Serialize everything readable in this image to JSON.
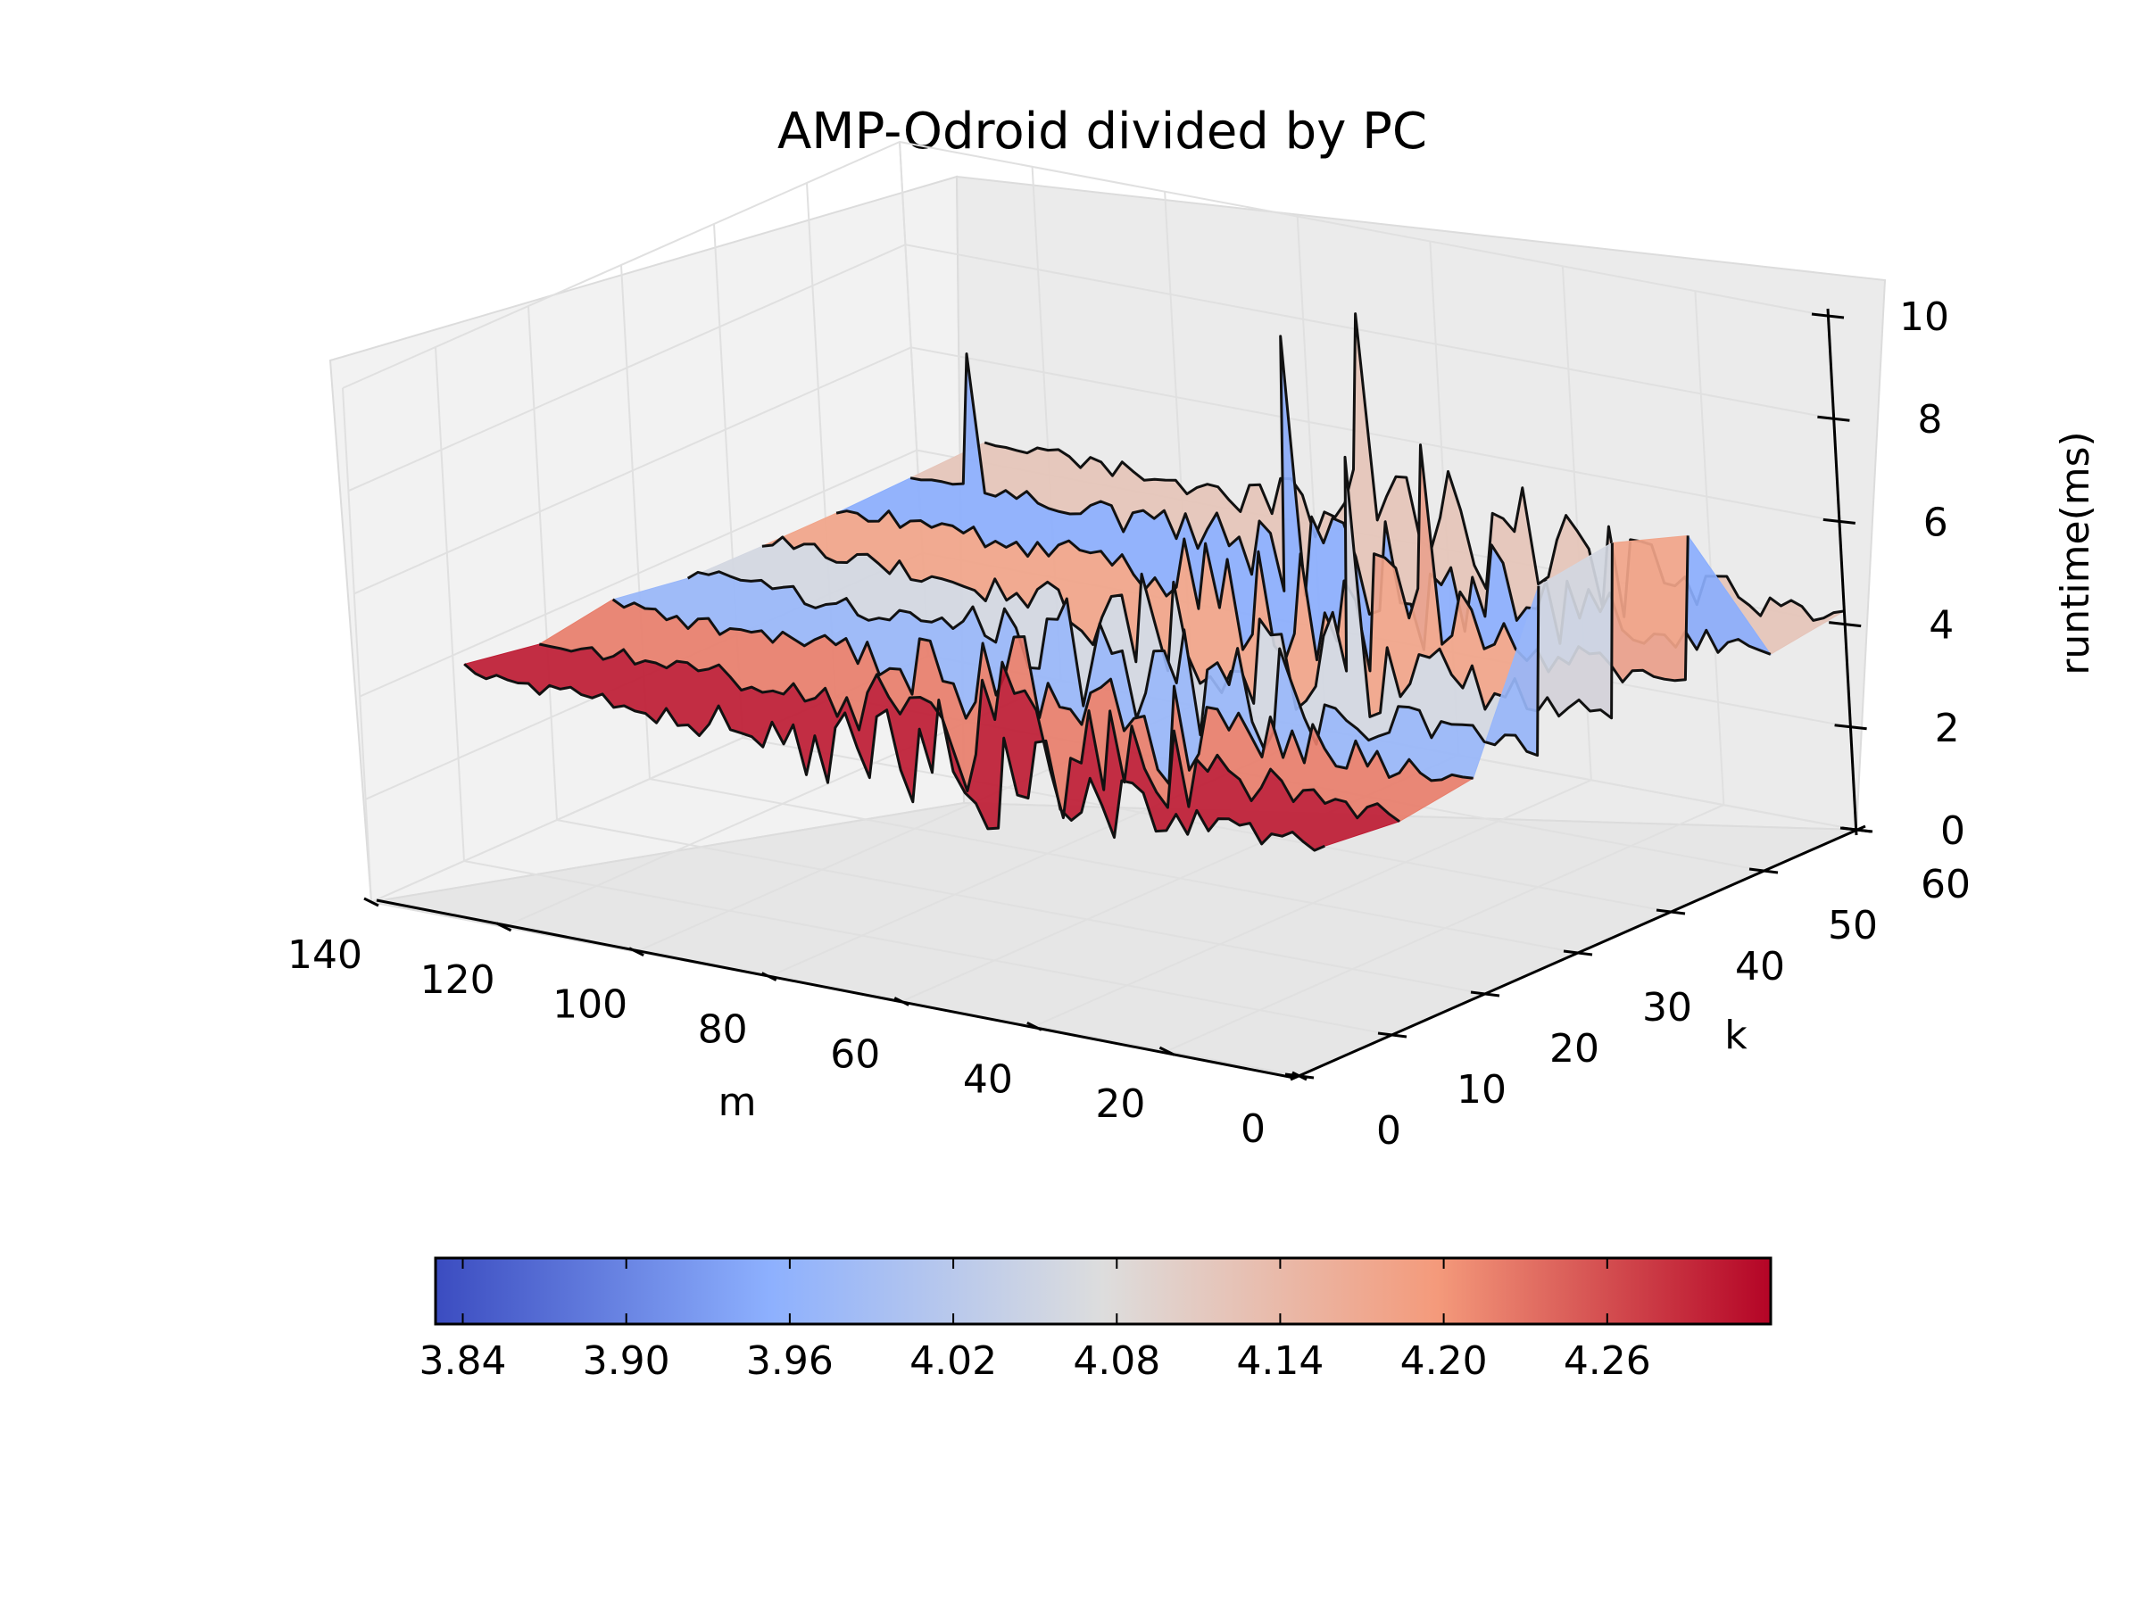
{
  "colors": {
    "background": "#ffffff",
    "pane_left": "#f2f2f2",
    "pane_back": "#ebebeb",
    "pane_floor": "#e6e6e6",
    "gridline": "#e0e0e0",
    "surface_edge": "#111111",
    "cmap_low": "#3b4cc0",
    "cmap_mid": "#dddddd",
    "cmap_high": "#b40426"
  },
  "chart_data": {
    "type": "surface3d",
    "title": "AMP-Odroid divided by PC",
    "xlabel": "m",
    "ylabel": "k",
    "zlabel": "runtime(ms)",
    "x_ticks": [
      "0",
      "20",
      "40",
      "60",
      "80",
      "100",
      "120",
      "140"
    ],
    "y_ticks": [
      "0",
      "10",
      "20",
      "30",
      "40",
      "50",
      "60"
    ],
    "z_ticks": [
      "0",
      "2",
      "4",
      "6",
      "8",
      "10"
    ],
    "xlim": [
      0,
      140
    ],
    "ylim": [
      0,
      60
    ],
    "zlim": [
      0,
      10
    ],
    "k_rows": [
      4,
      12,
      20,
      28,
      36,
      44,
      52,
      60
    ],
    "m_range": [
      0,
      130
    ],
    "row_mean_ratio": [
      4.3,
      4.22,
      3.97,
      4.06,
      4.18,
      3.95,
      4.12,
      3.92
    ],
    "spikes": [
      {
        "m": 0,
        "k": 28,
        "z": 7.3
      },
      {
        "m": 0,
        "k": 36,
        "z": 7.5
      },
      {
        "m": 0,
        "k": 44,
        "z": 7.0
      },
      {
        "m": 40,
        "k": 36,
        "z": 8.2
      },
      {
        "m": 40,
        "k": 44,
        "z": 7.8
      },
      {
        "m": 72,
        "k": 52,
        "z": 8.5
      },
      {
        "m": 72,
        "k": 60,
        "z": 8.3
      },
      {
        "m": 120,
        "k": 52,
        "z": 7.0
      }
    ],
    "colorbar": {
      "ticks": [
        "3.84",
        "3.90",
        "3.96",
        "4.02",
        "4.08",
        "4.14",
        "4.20",
        "4.26"
      ],
      "range": [
        3.83,
        4.32
      ],
      "colormap": "coolwarm",
      "orientation": "horizontal"
    },
    "grid": true
  }
}
